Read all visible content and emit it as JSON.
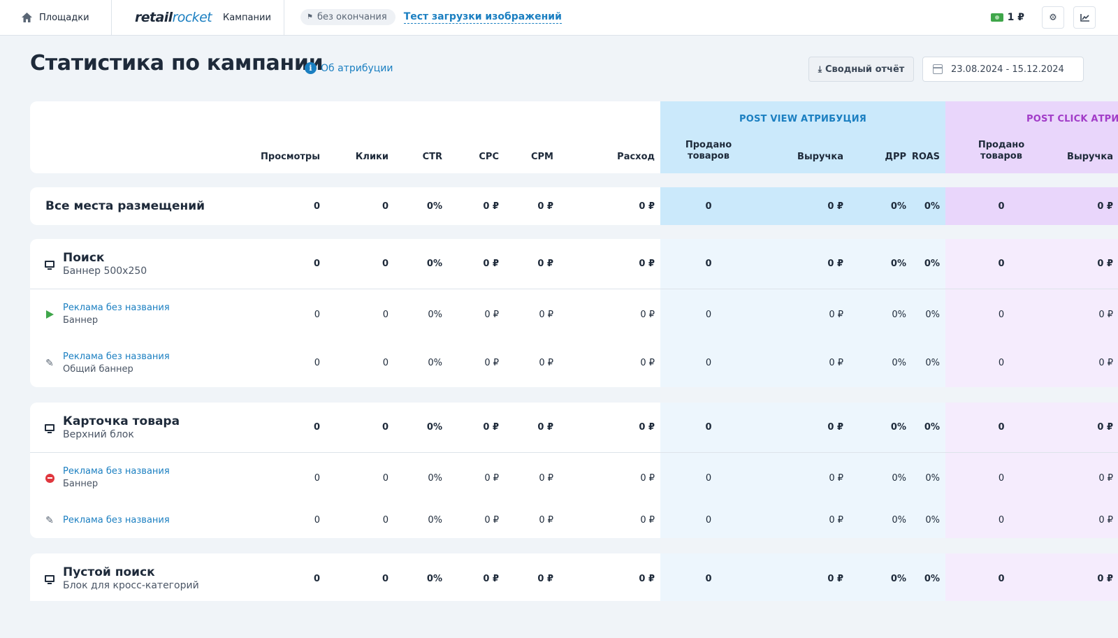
{
  "header": {
    "nav_platforms": "Площадки",
    "logo_part1": "retail",
    "logo_part2": "rocket",
    "nav_campaigns": "Кампании",
    "period_chip": "без окончания",
    "campaign_name": "Тест загрузки изображений",
    "balance": "1 ₽"
  },
  "page": {
    "title": "Статистика по кампании",
    "attribution_link": "Об атрибуции",
    "report_button": "Сводный отчёт",
    "date_range": "23.08.2024 - 15.12.2024"
  },
  "table": {
    "band_post_view": "POST VIEW АТРИБУЦИЯ",
    "band_post_click": "POST CLICK АТРИБ",
    "columns": {
      "views": "Просмотры",
      "clicks": "Клики",
      "ctr": "CTR",
      "cpc": "CPC",
      "cpm": "CPM",
      "cost": "Расход",
      "pv_sold_1": "Продано",
      "pv_sold_2": "товаров",
      "pv_revenue": "Выручка",
      "pv_drr": "ДРР",
      "pv_roas": "ROAS",
      "pc_sold_1": "Продано",
      "pc_sold_2": "товаров",
      "pc_revenue": "Выручка"
    },
    "total": {
      "name": "Все места размещений",
      "v": [
        "0",
        "0",
        "0%",
        "0 ₽",
        "0 ₽",
        "0 ₽",
        "0",
        "0 ₽",
        "0%",
        "0%",
        "0",
        "0 ₽"
      ]
    },
    "groups": [
      {
        "title": "Поиск",
        "subtitle": "Баннер 500x250",
        "icon": "monitor-icon",
        "v": [
          "0",
          "0",
          "0%",
          "0 ₽",
          "0 ₽",
          "0 ₽",
          "0",
          "0 ₽",
          "0%",
          "0%",
          "0",
          "0 ₽"
        ],
        "ads": [
          {
            "title": "Реклама без названия",
            "subtitle": "Баннер",
            "icon": "play-icon",
            "v": [
              "0",
              "0",
              "0%",
              "0 ₽",
              "0 ₽",
              "0 ₽",
              "0",
              "0 ₽",
              "0%",
              "0%",
              "0",
              "0 ₽"
            ]
          },
          {
            "title": "Реклама без названия",
            "subtitle": "Общий баннер",
            "icon": "pencil-icon",
            "v": [
              "0",
              "0",
              "0%",
              "0 ₽",
              "0 ₽",
              "0 ₽",
              "0",
              "0 ₽",
              "0%",
              "0%",
              "0",
              "0 ₽"
            ]
          }
        ]
      },
      {
        "title": "Карточка товара",
        "subtitle": "Верхний блок",
        "icon": "monitor-icon",
        "v": [
          "0",
          "0",
          "0%",
          "0 ₽",
          "0 ₽",
          "0 ₽",
          "0",
          "0 ₽",
          "0%",
          "0%",
          "0",
          "0 ₽"
        ],
        "ads": [
          {
            "title": "Реклама без названия",
            "subtitle": "Баннер",
            "icon": "stop-icon",
            "v": [
              "0",
              "0",
              "0%",
              "0 ₽",
              "0 ₽",
              "0 ₽",
              "0",
              "0 ₽",
              "0%",
              "0%",
              "0",
              "0 ₽"
            ]
          },
          {
            "title": "Реклама без названия",
            "subtitle": "",
            "icon": "pencil-icon",
            "v": [
              "0",
              "0",
              "0%",
              "0 ₽",
              "0 ₽",
              "0 ₽",
              "0",
              "0 ₽",
              "0%",
              "0%",
              "0",
              "0 ₽"
            ]
          }
        ]
      },
      {
        "title": "Пустой поиск",
        "subtitle": "Блок для кросс-категорий",
        "icon": "monitor-icon",
        "v": [
          "0",
          "0",
          "0%",
          "0 ₽",
          "0 ₽",
          "0 ₽",
          "0",
          "0 ₽",
          "0%",
          "0%",
          "0",
          "0 ₽"
        ]
      }
    ]
  }
}
